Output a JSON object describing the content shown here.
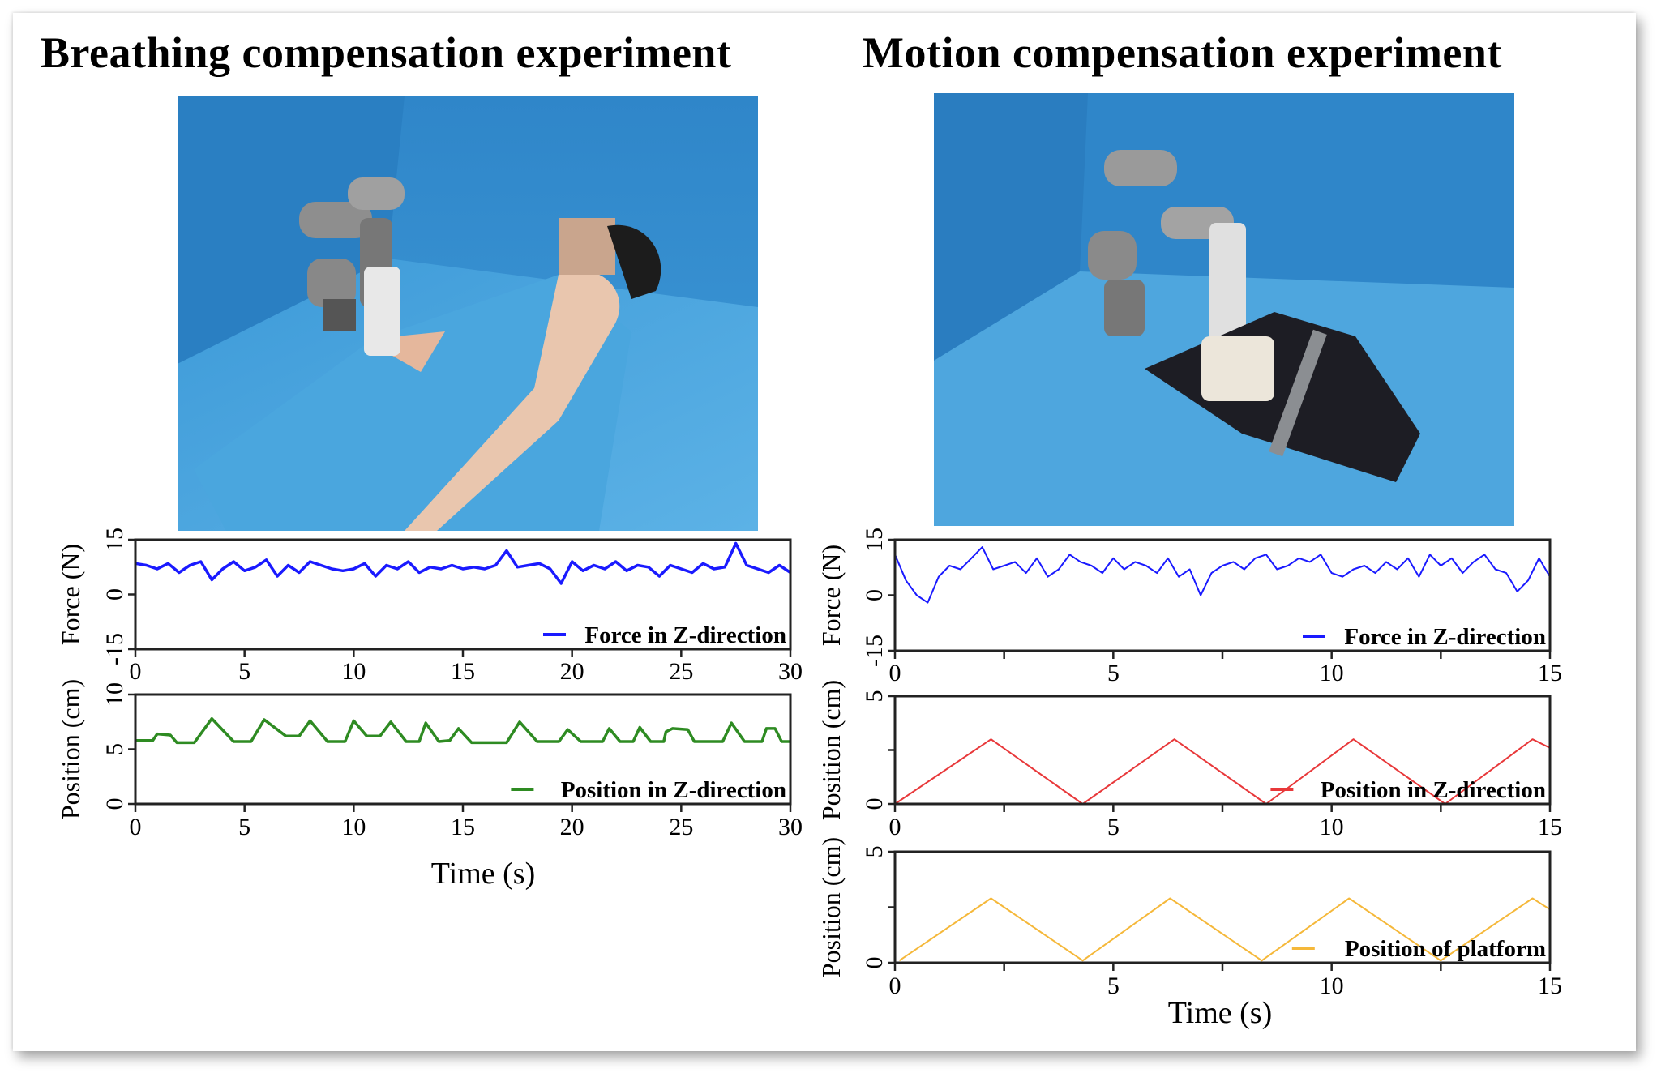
{
  "titles": {
    "left": "Breathing compensation experiment",
    "right": "Motion compensation experiment"
  },
  "photos": {
    "left": "robot-arm-on-patient-chest",
    "right": "robot-arm-on-motion-platform"
  },
  "chart_data": [
    {
      "type": "line",
      "panel": "breathing-force",
      "xlim": [
        0,
        30
      ],
      "ylim": [
        -15,
        15
      ],
      "xticks": [
        0,
        5,
        10,
        15,
        20,
        25,
        30
      ],
      "yticks": [
        -15,
        0,
        15
      ],
      "ylabel": "Force (N)",
      "xlabel": "",
      "legend": "Force in Z-direction",
      "legend_position": "bottom-right",
      "color": "#1a1aff",
      "series": [
        {
          "name": "Force in Z-direction",
          "x_range": [
            0,
            30
          ],
          "values": [
            8.5,
            8,
            7,
            8.5,
            6,
            8,
            9,
            4,
            7,
            9,
            6.5,
            7.5,
            9.5,
            5,
            8,
            6,
            9,
            8,
            7,
            6.5,
            7,
            8.5,
            5,
            8,
            7,
            9,
            6,
            7.5,
            7,
            8,
            7,
            7.5,
            7,
            8,
            12,
            7.5,
            8,
            8.5,
            7,
            3,
            9,
            6.5,
            8,
            7,
            9,
            6.5,
            8,
            7.5,
            5,
            8,
            7,
            6,
            8.5,
            7,
            7.5,
            14,
            8,
            7,
            6,
            8,
            6
          ]
        }
      ]
    },
    {
      "type": "line",
      "panel": "breathing-position",
      "xlim": [
        0,
        30
      ],
      "ylim": [
        0,
        10
      ],
      "xticks": [
        0,
        5,
        10,
        15,
        20,
        25,
        30
      ],
      "yticks": [
        0,
        5,
        10
      ],
      "ylabel": "Position (cm)",
      "xlabel": "Time (s)",
      "legend": "Position in Z-direction",
      "legend_position": "bottom-right",
      "color": "#2e8b22",
      "series": [
        {
          "name": "Position in Z-direction",
          "points": [
            [
              0,
              5.8
            ],
            [
              0.8,
              5.8
            ],
            [
              1,
              6.4
            ],
            [
              1.6,
              6.3
            ],
            [
              1.9,
              5.6
            ],
            [
              2.7,
              5.6
            ],
            [
              3.5,
              7.8
            ],
            [
              4.5,
              5.7
            ],
            [
              5.3,
              5.7
            ],
            [
              5.9,
              7.7
            ],
            [
              6.9,
              6.2
            ],
            [
              7.5,
              6.2
            ],
            [
              8,
              7.6
            ],
            [
              8.8,
              5.7
            ],
            [
              9.6,
              5.7
            ],
            [
              10,
              7.6
            ],
            [
              10.6,
              6.2
            ],
            [
              11.2,
              6.2
            ],
            [
              11.7,
              7.5
            ],
            [
              12.4,
              5.7
            ],
            [
              13,
              5.7
            ],
            [
              13.3,
              7.4
            ],
            [
              13.9,
              5.7
            ],
            [
              14.4,
              5.8
            ],
            [
              14.8,
              6.9
            ],
            [
              15.4,
              5.6
            ],
            [
              17,
              5.6
            ],
            [
              17.6,
              7.5
            ],
            [
              18.4,
              5.7
            ],
            [
              19.4,
              5.7
            ],
            [
              19.8,
              6.8
            ],
            [
              20.4,
              5.7
            ],
            [
              21.4,
              5.7
            ],
            [
              21.7,
              6.9
            ],
            [
              22.2,
              5.7
            ],
            [
              22.8,
              5.7
            ],
            [
              23.1,
              7
            ],
            [
              23.6,
              5.7
            ],
            [
              24.2,
              5.7
            ],
            [
              24.3,
              6.6
            ],
            [
              24.6,
              6.9
            ],
            [
              25.3,
              6.8
            ],
            [
              25.6,
              5.7
            ],
            [
              26.9,
              5.7
            ],
            [
              27.3,
              7.4
            ],
            [
              27.9,
              5.7
            ],
            [
              28.7,
              5.7
            ],
            [
              28.9,
              6.9
            ],
            [
              29.3,
              6.9
            ],
            [
              29.6,
              5.7
            ],
            [
              30,
              5.7
            ]
          ]
        }
      ]
    },
    {
      "type": "line",
      "panel": "motion-force",
      "xlim": [
        0,
        15
      ],
      "ylim": [
        -15,
        15
      ],
      "xticks": [
        0,
        5,
        10,
        15
      ],
      "yticks": [
        -15,
        0,
        15
      ],
      "ylabel": "Force (N)",
      "xlabel": "",
      "legend": "Force in Z-direction",
      "legend_position": "bottom-right",
      "color": "#1a1aff",
      "series": [
        {
          "name": "Force in Z-direction",
          "x_range": [
            0,
            15
          ],
          "values": [
            11,
            4,
            0,
            -2,
            5,
            8,
            7,
            10,
            13,
            7,
            8,
            9,
            6,
            10,
            5,
            7,
            11,
            9,
            8,
            6,
            10,
            7,
            9,
            8,
            6,
            10,
            5,
            7,
            0,
            6,
            8,
            9,
            7,
            10,
            11,
            7,
            8,
            10,
            9,
            11,
            6,
            5,
            7,
            8,
            6,
            9,
            7,
            10,
            5,
            11,
            8,
            10,
            6,
            9,
            11,
            7,
            6,
            1,
            4,
            10,
            5
          ]
        }
      ]
    },
    {
      "type": "line",
      "panel": "motion-position",
      "xlim": [
        0,
        15
      ],
      "ylim": [
        0,
        5
      ],
      "xticks": [
        0,
        5,
        10,
        15
      ],
      "yticks": [
        0,
        5
      ],
      "ylabel": "Position (cm)",
      "xlabel": "",
      "legend": "Position in Z-direction",
      "legend_position": "bottom-right",
      "color": "#e8383a",
      "series": [
        {
          "name": "Position in Z-direction",
          "points": [
            [
              0,
              0
            ],
            [
              2.2,
              3
            ],
            [
              4.3,
              0
            ],
            [
              6.4,
              3
            ],
            [
              8.5,
              0
            ],
            [
              10.5,
              3
            ],
            [
              12.6,
              0
            ],
            [
              14.6,
              3
            ],
            [
              15,
              2.6
            ]
          ]
        }
      ]
    },
    {
      "type": "line",
      "panel": "platform-position",
      "xlim": [
        0,
        15
      ],
      "ylim": [
        0,
        5
      ],
      "xticks": [
        0,
        5,
        10,
        15
      ],
      "yticks": [
        0,
        5
      ],
      "ylabel": "Position (cm)",
      "xlabel": "Time (s)",
      "legend": "Position of  platform",
      "legend_position": "bottom-right",
      "color": "#f5b83a",
      "series": [
        {
          "name": "Position of platform",
          "points": [
            [
              0.1,
              0.1
            ],
            [
              2.2,
              2.9
            ],
            [
              4.3,
              0.1
            ],
            [
              6.3,
              2.9
            ],
            [
              8.4,
              0.1
            ],
            [
              10.4,
              2.9
            ],
            [
              12.5,
              0.1
            ],
            [
              14.6,
              2.9
            ],
            [
              15,
              2.4
            ]
          ]
        }
      ]
    }
  ]
}
